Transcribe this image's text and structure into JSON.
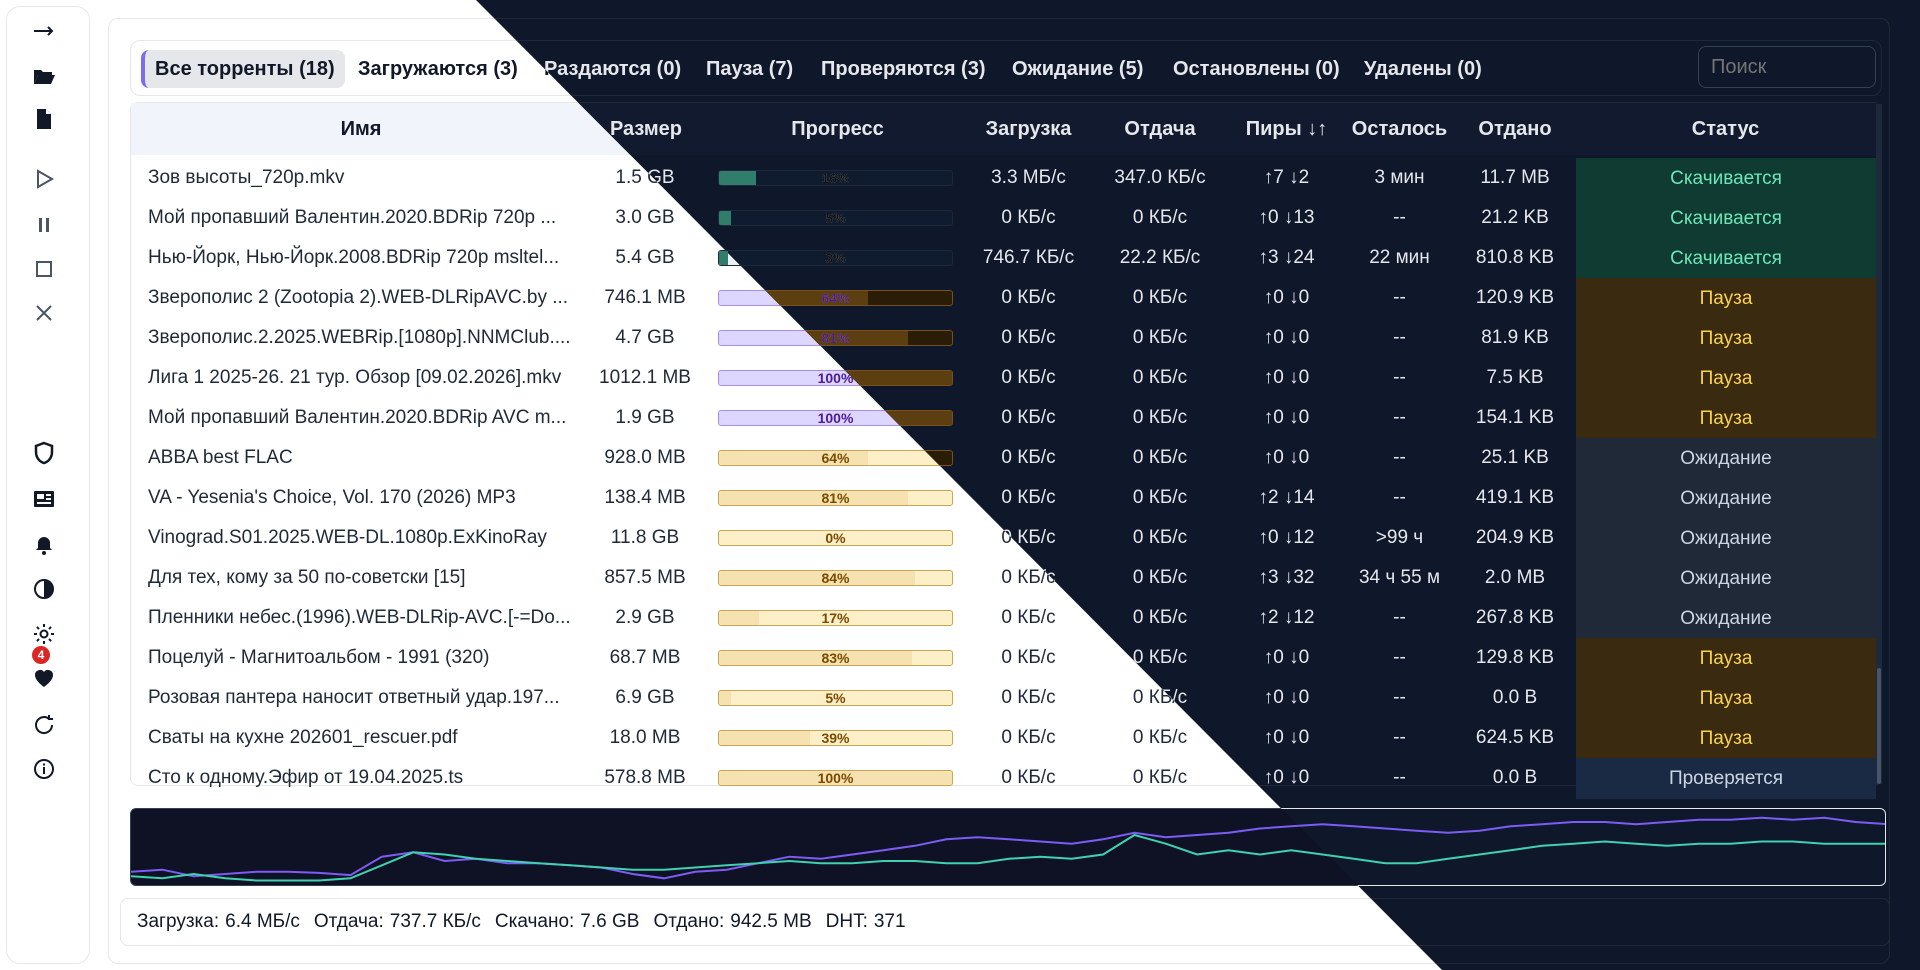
{
  "sidebar": {
    "icons": [
      "arrow-right-icon",
      "folder-open-icon",
      "file-icon",
      "play-icon",
      "pause-icon",
      "stop-icon",
      "close-icon",
      "shield-icon",
      "newspaper-icon",
      "bell-icon",
      "contrast-icon",
      "gear-icon",
      "heart-icon",
      "refresh-icon",
      "info-icon"
    ],
    "notifications_count": "4"
  },
  "tabs": [
    {
      "label": "Все торренты (18)",
      "active": true
    },
    {
      "label": "Загружаются (3)",
      "active": false
    },
    {
      "label": "Раздаются (0)",
      "active": false
    },
    {
      "label": "Пауза (7)",
      "active": false
    },
    {
      "label": "Проверяются (3)",
      "active": false
    },
    {
      "label": "Ожидание (5)",
      "active": false
    },
    {
      "label": "Остановлены (0)",
      "active": false
    },
    {
      "label": "Удалены (0)",
      "active": false
    }
  ],
  "search": {
    "placeholder": "Поиск"
  },
  "table": {
    "columns": [
      "Имя",
      "Размер",
      "Прогресс",
      "Загрузка",
      "Отдача",
      "Пиры ↓↑",
      "Осталось",
      "Отдано",
      "Статус"
    ],
    "rows": [
      {
        "name": "Зов высоты_720p.mkv",
        "size": "1.5 GB",
        "progress": 16,
        "progress_label": "16%",
        "down": "3.3 МБ/с",
        "up": "347.0 КБ/с",
        "peers": "↑7 ↓2",
        "left": "3 мин",
        "uploaded": "11.7 MB",
        "status": "Скачивается",
        "kind": "download"
      },
      {
        "name": "Мой пропавший Валентин.2020.BDRip 720p ...",
        "size": "3.0 GB",
        "progress": 5,
        "progress_label": "5%",
        "down": "0 КБ/с",
        "up": "0 КБ/с",
        "peers": "↑0 ↓13",
        "left": "--",
        "uploaded": "21.2 KB",
        "status": "Скачивается",
        "kind": "download"
      },
      {
        "name": "Нью-Йорк, Нью-Йорк.2008.BDRip 720p msltel...",
        "size": "5.4 GB",
        "progress": 3,
        "progress_label": "3%",
        "down": "746.7 КБ/с",
        "up": "22.2 КБ/с",
        "peers": "↑3 ↓24",
        "left": "22 мин",
        "uploaded": "810.8 KB",
        "status": "Скачивается",
        "kind": "download"
      },
      {
        "name": "Зверополис 2 (Zootopia 2).WEB-DLRipAVC.by ...",
        "size": "746.1 MB",
        "progress": 64,
        "progress_label": "64%",
        "down": "0 КБ/с",
        "up": "0 КБ/с",
        "peers": "↑0 ↓0",
        "left": "--",
        "uploaded": "120.9 KB",
        "status": "Пауза",
        "kind": "paused"
      },
      {
        "name": "Зверополис.2.2025.WEBRip.[1080p].NNMClub....",
        "size": "4.7 GB",
        "progress": 81,
        "progress_label": "81%",
        "down": "0 КБ/с",
        "up": "0 КБ/с",
        "peers": "↑0 ↓0",
        "left": "--",
        "uploaded": "81.9 KB",
        "status": "Пауза",
        "kind": "paused"
      },
      {
        "name": "Лига 1 2025-26. 21 тур. Обзор [09.02.2026].mkv",
        "size": "1012.1 MB",
        "progress": 100,
        "progress_label": "100%",
        "down": "0 КБ/с",
        "up": "0 КБ/с",
        "peers": "↑0 ↓0",
        "left": "--",
        "uploaded": "7.5 KB",
        "status": "Пауза",
        "kind": "paused"
      },
      {
        "name": "Мой пропавший Валентин.2020.BDRip AVC m...",
        "size": "1.9 GB",
        "progress": 100,
        "progress_label": "100%",
        "down": "0 КБ/с",
        "up": "0 КБ/с",
        "peers": "↑0 ↓0",
        "left": "--",
        "uploaded": "154.1 KB",
        "status": "Пауза",
        "kind": "paused"
      },
      {
        "name": "ABBA best FLAC",
        "size": "928.0 MB",
        "progress": 64,
        "progress_label": "64%",
        "down": "0 КБ/с",
        "up": "0 КБ/с",
        "peers": "↑0 ↓0",
        "left": "--",
        "uploaded": "25.1 KB",
        "status": "Ожидание",
        "kind": "queued"
      },
      {
        "name": "VA - Yesenia's Choice, Vol. 170 (2026) MP3",
        "size": "138.4 MB",
        "progress": 81,
        "progress_label": "81%",
        "down": "0 КБ/с",
        "up": "0 КБ/с",
        "peers": "↑2 ↓14",
        "left": "--",
        "uploaded": "419.1 KB",
        "status": "Ожидание",
        "kind": "queued"
      },
      {
        "name": "Vinograd.S01.2025.WEB-DL.1080p.ExKinoRay",
        "size": "11.8 GB",
        "progress": 0,
        "progress_label": "0%",
        "down": "0 КБ/с",
        "up": "0 КБ/с",
        "peers": "↑0 ↓12",
        "left": ">99 ч",
        "uploaded": "204.9 KB",
        "status": "Ожидание",
        "kind": "queued"
      },
      {
        "name": "Для тех, кому за 50 по-советски [15]",
        "size": "857.5 MB",
        "progress": 84,
        "progress_label": "84%",
        "down": "0 КБ/с",
        "up": "0 КБ/с",
        "peers": "↑3 ↓32",
        "left": "34 ч 55 м",
        "uploaded": "2.0 MB",
        "status": "Ожидание",
        "kind": "queued"
      },
      {
        "name": "Пленники небес.(1996).WEB-DLRip-AVC.[-=Do...",
        "size": "2.9 GB",
        "progress": 17,
        "progress_label": "17%",
        "down": "0 КБ/с",
        "up": "0 КБ/с",
        "peers": "↑2 ↓12",
        "left": "--",
        "uploaded": "267.8 KB",
        "status": "Ожидание",
        "kind": "queued"
      },
      {
        "name": "Поцелуй - Магнитоальбом - 1991 (320)",
        "size": "68.7 MB",
        "progress": 83,
        "progress_label": "83%",
        "down": "0 КБ/с",
        "up": "0 КБ/с",
        "peers": "↑0 ↓0",
        "left": "--",
        "uploaded": "129.8 KB",
        "status": "Пауза",
        "kind": "paused"
      },
      {
        "name": "Розовая пантера наносит ответный удар.197...",
        "size": "6.9 GB",
        "progress": 5,
        "progress_label": "5%",
        "down": "0 КБ/с",
        "up": "0 КБ/с",
        "peers": "↑0 ↓0",
        "left": "--",
        "uploaded": "0.0 B",
        "status": "Пауза",
        "kind": "paused"
      },
      {
        "name": "Сваты на кухне 202601_rescuer.pdf",
        "size": "18.0 MB",
        "progress": 39,
        "progress_label": "39%",
        "down": "0 КБ/с",
        "up": "0 КБ/с",
        "peers": "↑0 ↓0",
        "left": "--",
        "uploaded": "624.5 KB",
        "status": "Пауза",
        "kind": "paused"
      },
      {
        "name": "Сто к одному.Эфир от 19.04.2025.ts",
        "size": "578.8 MB",
        "progress": 100,
        "progress_label": "100%",
        "down": "0 КБ/с",
        "up": "0 КБ/с",
        "peers": "↑0 ↓0",
        "left": "--",
        "uploaded": "0.0 B",
        "status": "Проверяется",
        "kind": "checking"
      }
    ]
  },
  "statusbar": {
    "download_label": "Загрузка:",
    "download_value": "6.4 МБ/с",
    "upload_label": "Отдача:",
    "upload_value": "737.7 КБ/с",
    "downloaded_label": "Скачано:",
    "downloaded_value": "7.6 GB",
    "uploaded_label": "Отдано:",
    "uploaded_value": "942.5 MB",
    "dht_label": "DHT:",
    "dht_value": "371"
  },
  "colors": {
    "accent": "#7c6cf5",
    "download_line": "#7c5cf5",
    "upload_line": "#3fd1b0",
    "status_download_bg": "#0f3b33",
    "status_download_fg": "#6ee7b7",
    "status_paused_bg": "#3a2a10",
    "status_paused_fg": "#fcd34d",
    "status_queued_bg": "#1f2937",
    "status_queued_fg": "#cbd5e1",
    "status_checking_bg": "#1b2a44",
    "status_checking_fg": "#cbd5e1"
  }
}
